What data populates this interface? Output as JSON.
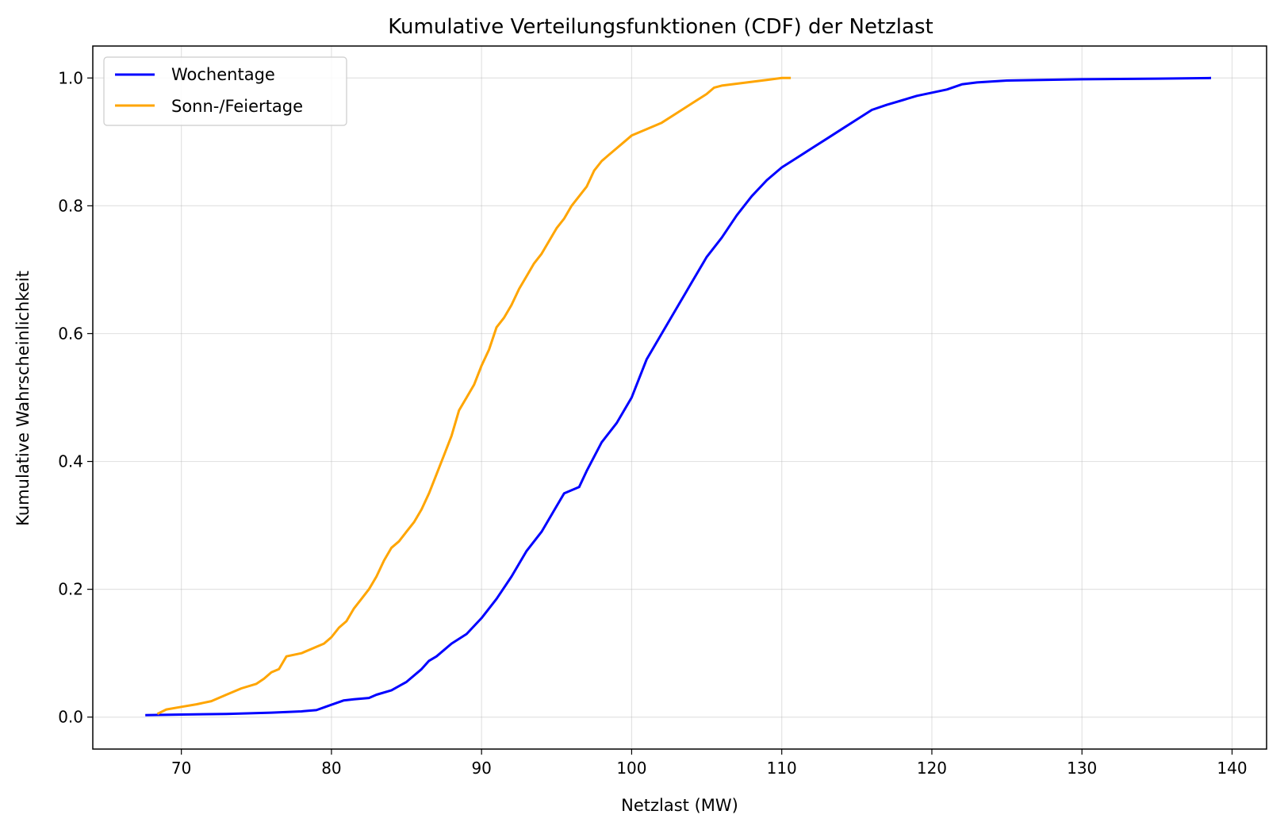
{
  "chart_data": {
    "type": "line",
    "title": "Kumulative Verteilungsfunktionen (CDF) der Netzlast",
    "xlabel": "Netzlast (MW)",
    "ylabel": "Kumulative Wahrscheinlichkeit",
    "xlim": [
      64.1,
      142.3
    ],
    "ylim": [
      -0.05,
      1.05
    ],
    "xticks": [
      70,
      80,
      90,
      100,
      110,
      120,
      130,
      140
    ],
    "yticks": [
      0.0,
      0.2,
      0.4,
      0.6,
      0.8,
      1.0
    ],
    "xtick_labels": [
      "70",
      "80",
      "90",
      "100",
      "110",
      "120",
      "130",
      "140"
    ],
    "ytick_labels": [
      "0.0",
      "0.2",
      "0.4",
      "0.6",
      "0.8",
      "1.0"
    ],
    "grid": true,
    "legend_position": "top-left",
    "series": [
      {
        "name": "Wochentage",
        "color": "#0000ff",
        "x": [
          67.6,
          70,
          73,
          76,
          78,
          79,
          79.6,
          80.2,
          80.8,
          81.5,
          82.5,
          83,
          84,
          85,
          86,
          86.5,
          87,
          88,
          89,
          90,
          91,
          92,
          93,
          94,
          95,
          95.5,
          96.5,
          97,
          98,
          99,
          100,
          100.5,
          101,
          102,
          103,
          103.5,
          104,
          105,
          106,
          107,
          108,
          109,
          110,
          111,
          112,
          113,
          114,
          115,
          116,
          117,
          118,
          119,
          120,
          121,
          122,
          123,
          125,
          130,
          135,
          138.6
        ],
        "y": [
          0.003,
          0.004,
          0.005,
          0.007,
          0.009,
          0.011,
          0.016,
          0.021,
          0.026,
          0.028,
          0.03,
          0.035,
          0.042,
          0.055,
          0.075,
          0.088,
          0.095,
          0.115,
          0.13,
          0.155,
          0.185,
          0.22,
          0.26,
          0.29,
          0.33,
          0.35,
          0.36,
          0.385,
          0.43,
          0.46,
          0.5,
          0.53,
          0.56,
          0.6,
          0.64,
          0.66,
          0.68,
          0.72,
          0.75,
          0.785,
          0.815,
          0.84,
          0.86,
          0.875,
          0.89,
          0.905,
          0.92,
          0.935,
          0.95,
          0.958,
          0.965,
          0.972,
          0.977,
          0.982,
          0.99,
          0.993,
          0.996,
          0.998,
          0.999,
          1.0
        ]
      },
      {
        "name": "Sonn-/Feiertage",
        "color": "#ffa500",
        "x": [
          68.4,
          69,
          70,
          71,
          72,
          73,
          74,
          75,
          75.5,
          76,
          76.5,
          77,
          78,
          79,
          79.5,
          80,
          80.5,
          81,
          81.5,
          82,
          82.5,
          83,
          83.5,
          84,
          84.5,
          85,
          85.5,
          86,
          86.5,
          87,
          87.5,
          88,
          88.5,
          89,
          89.5,
          90,
          90.5,
          91,
          91.5,
          92,
          92.5,
          93,
          93.5,
          94,
          94.5,
          95,
          95.5,
          96,
          96.5,
          97,
          97.5,
          98,
          98.5,
          99,
          99.5,
          100,
          101,
          102,
          103,
          104,
          105,
          105.5,
          106,
          107,
          108,
          109,
          110,
          110.6
        ],
        "y": [
          0.005,
          0.012,
          0.016,
          0.02,
          0.025,
          0.035,
          0.045,
          0.052,
          0.06,
          0.07,
          0.075,
          0.095,
          0.1,
          0.11,
          0.115,
          0.125,
          0.14,
          0.15,
          0.17,
          0.185,
          0.2,
          0.22,
          0.245,
          0.265,
          0.275,
          0.29,
          0.305,
          0.325,
          0.35,
          0.38,
          0.41,
          0.44,
          0.48,
          0.5,
          0.52,
          0.55,
          0.575,
          0.61,
          0.625,
          0.645,
          0.67,
          0.69,
          0.71,
          0.725,
          0.745,
          0.765,
          0.78,
          0.8,
          0.815,
          0.83,
          0.855,
          0.87,
          0.88,
          0.89,
          0.9,
          0.91,
          0.92,
          0.93,
          0.945,
          0.96,
          0.975,
          0.985,
          0.988,
          0.991,
          0.994,
          0.997,
          1.0,
          1.0
        ]
      }
    ]
  }
}
